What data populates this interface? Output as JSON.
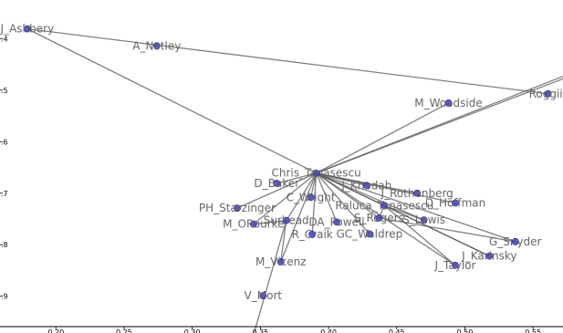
{
  "chart_data": {
    "type": "scatter",
    "title": "",
    "xlabel": "",
    "ylabel": "",
    "xlim": [
      0.159,
      0.572
    ],
    "ylim": [
      0.959,
      0.325
    ],
    "grid": false,
    "x_ticks": [
      0.2,
      0.25,
      0.3,
      0.35,
      0.4,
      0.45,
      0.5,
      0.55
    ],
    "y_ticks": [
      0.4,
      0.5,
      0.6,
      0.7,
      0.8,
      0.9
    ],
    "x_tick_labels": [
      "0.20",
      "0.25",
      "0.30",
      "0.35",
      "0.40",
      "0.45",
      "0.50",
      "0.55"
    ],
    "y_tick_labels": [
      ".4",
      ".5",
      ".6",
      ".7",
      ".8",
      ".9"
    ],
    "node_color": "#3c3ccc",
    "edge_color": "#555555",
    "nodes": [
      {
        "id": "J_Ashbery",
        "x": 0.179,
        "y": 0.381
      },
      {
        "id": "A_Notley",
        "x": 0.274,
        "y": 0.414
      },
      {
        "id": "M_Woodside",
        "x": 0.488,
        "y": 0.525
      },
      {
        "id": "Roggiir",
        "x": 0.561,
        "y": 0.507
      },
      {
        "id": "Chris_Tanasescu",
        "x": 0.391,
        "y": 0.661
      },
      {
        "id": "D_Baker",
        "x": 0.362,
        "y": 0.681
      },
      {
        "id": "J_Khodah",
        "x": 0.428,
        "y": 0.685
      },
      {
        "id": "J_Rothenberg",
        "x": 0.465,
        "y": 0.7
      },
      {
        "id": "C_Wright",
        "x": 0.387,
        "y": 0.708
      },
      {
        "id": "Raluca_Tanasescu",
        "x": 0.441,
        "y": 0.724
      },
      {
        "id": "D_Hoffman",
        "x": 0.493,
        "y": 0.719
      },
      {
        "id": "PH_Starzinger",
        "x": 0.333,
        "y": 0.729
      },
      {
        "id": "S_Rogers",
        "x": 0.437,
        "y": 0.748
      },
      {
        "id": "S_Lewis",
        "x": 0.47,
        "y": 0.752
      },
      {
        "id": "M_ORourke",
        "x": 0.345,
        "y": 0.76
      },
      {
        "id": "Surhead",
        "x": 0.369,
        "y": 0.753
      },
      {
        "id": "DA_Powell",
        "x": 0.406,
        "y": 0.756
      },
      {
        "id": "R_Craik",
        "x": 0.388,
        "y": 0.78
      },
      {
        "id": "GC_Waldrep",
        "x": 0.43,
        "y": 0.779
      },
      {
        "id": "G_Snyder",
        "x": 0.537,
        "y": 0.794
      },
      {
        "id": "J_Karinsky",
        "x": 0.518,
        "y": 0.822
      },
      {
        "id": "J_Taylor",
        "x": 0.493,
        "y": 0.84
      },
      {
        "id": "M_Vicenz",
        "x": 0.365,
        "y": 0.833
      },
      {
        "id": "V_Mort",
        "x": 0.352,
        "y": 0.899
      }
    ],
    "edges": [
      [
        "J_Ashbery",
        "Roggiir"
      ],
      [
        "J_Ashbery",
        "Chris_Tanasescu"
      ],
      [
        "Chris_Tanasescu",
        "M_Woodside"
      ],
      [
        "Chris_Tanasescu",
        "D_Baker"
      ],
      [
        "Chris_Tanasescu",
        "J_Khodah"
      ],
      [
        "Chris_Tanasescu",
        "J_Rothenberg"
      ],
      [
        "Chris_Tanasescu",
        "C_Wright"
      ],
      [
        "Chris_Tanasescu",
        "Raluca_Tanasescu"
      ],
      [
        "Chris_Tanasescu",
        "D_Hoffman"
      ],
      [
        "Chris_Tanasescu",
        "PH_Starzinger"
      ],
      [
        "Chris_Tanasescu",
        "S_Rogers"
      ],
      [
        "Chris_Tanasescu",
        "S_Lewis"
      ],
      [
        "Chris_Tanasescu",
        "M_ORourke"
      ],
      [
        "Chris_Tanasescu",
        "Surhead"
      ],
      [
        "Chris_Tanasescu",
        "DA_Powell"
      ],
      [
        "Chris_Tanasescu",
        "R_Craik"
      ],
      [
        "Chris_Tanasescu",
        "GC_Waldrep"
      ],
      [
        "Chris_Tanasescu",
        "G_Snyder"
      ],
      [
        "Chris_Tanasescu",
        "J_Karinsky"
      ],
      [
        "Chris_Tanasescu",
        "J_Taylor"
      ],
      [
        "Chris_Tanasescu",
        "M_Vicenz"
      ],
      [
        "Raluca_Tanasescu",
        "J_Taylor"
      ],
      [
        "Raluca_Tanasescu",
        "S_Lewis"
      ],
      [
        "Raluca_Tanasescu",
        "S_Rogers"
      ],
      [
        "Raluca_Tanasescu",
        "J_Karinsky"
      ],
      [
        "S_Rogers",
        "G_Snyder"
      ],
      [
        "Surhead",
        "M_Vicenz"
      ],
      [
        "Surhead",
        "M_ORourke"
      ]
    ],
    "edges_offchart": [
      {
        "from": "Chris_Tanasescu",
        "toward": [
          0.58,
          0.465
        ]
      },
      {
        "from": "Chris_Tanasescu",
        "toward": [
          0.58,
          0.47
        ]
      },
      {
        "from": "Surhead",
        "toward": [
          0.345,
          0.975
        ]
      }
    ],
    "labels": [
      {
        "node": "J_Ashbery",
        "text": "J_Ashbery"
      },
      {
        "node": "A_Notley",
        "text": "A_Notley"
      },
      {
        "node": "M_Woodside",
        "text": "M_Woodside"
      },
      {
        "node": "Roggiir",
        "text": "Roggiir"
      },
      {
        "node": "Chris_Tanasescu",
        "text": "Chris_Tanasescu"
      },
      {
        "node": "D_Baker",
        "text": "D_Baker"
      },
      {
        "node": "J_Khodah",
        "text": "J_Khodah"
      },
      {
        "node": "J_Rothenberg",
        "text": "J_Rothenberg"
      },
      {
        "node": "C_Wright",
        "text": "C_Wright"
      },
      {
        "node": "Raluca_Tanasescu",
        "text": "Raluca_Tanasescu"
      },
      {
        "node": "D_Hoffman",
        "text": "D_Hoffman"
      },
      {
        "node": "PH_Starzinger",
        "text": "PH_Starzinger"
      },
      {
        "node": "S_Rogers",
        "text": "S_Rogers"
      },
      {
        "node": "S_Lewis",
        "text": "S_Lewis"
      },
      {
        "node": "M_ORourke",
        "text": "M_ORourke"
      },
      {
        "node": "Surhead",
        "text": "Surhead"
      },
      {
        "node": "DA_Powell",
        "text": "DA_Powell"
      },
      {
        "node": "R_Craik",
        "text": "R_Craik"
      },
      {
        "node": "GC_Waldrep",
        "text": "GC_Waldrep"
      },
      {
        "node": "G_Snyder",
        "text": "G_Snyder"
      },
      {
        "node": "J_Karinsky",
        "text": "J_Karinsky"
      },
      {
        "node": "J_Taylor",
        "text": "J_Taylor"
      },
      {
        "node": "M_Vicenz",
        "text": "M_Vicenz"
      },
      {
        "node": "V_Mort",
        "text": "V_Mort"
      }
    ]
  }
}
